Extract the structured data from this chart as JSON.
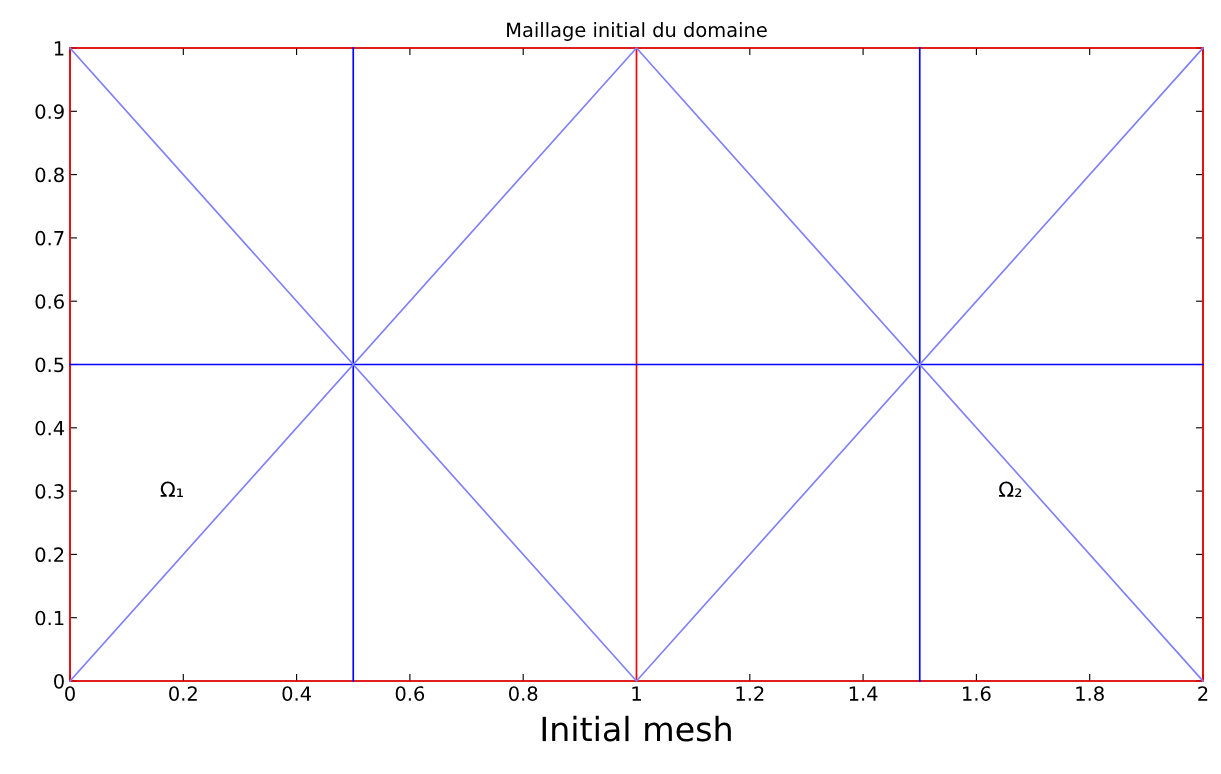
{
  "chart_data": {
    "type": "line",
    "title": "Maillage initial du domaine",
    "xlabel": "Initial mesh",
    "series": [
      {
        "color": "#8080ff",
        "x": [
          0,
          1,
          2
        ],
        "values": [
          1,
          0,
          1
        ]
      },
      {
        "color": "#8080ff",
        "x": [
          0,
          1,
          2
        ],
        "values": [
          0,
          1,
          0
        ]
      }
    ],
    "ref_lines": [
      {
        "axis": "y",
        "value": 0,
        "color": "#ff0000"
      },
      {
        "axis": "y",
        "value": 1,
        "color": "#ff0000"
      },
      {
        "axis": "x",
        "value": 0,
        "color": "#ff0000"
      },
      {
        "axis": "x",
        "value": 1,
        "color": "#ff0000"
      },
      {
        "axis": "x",
        "value": 2,
        "color": "#ff0000"
      },
      {
        "axis": "x",
        "value": 0.5,
        "color": "#0000ff"
      },
      {
        "axis": "x",
        "value": 1.5,
        "color": "#0000ff"
      },
      {
        "axis": "y",
        "value": 0.5,
        "color": "#0000ff"
      }
    ],
    "annotations": [
      "Ω₁",
      "Ω₂"
    ],
    "xlim": [
      0,
      2
    ],
    "ylim": [
      0,
      1
    ],
    "xticks": [
      0,
      0.2,
      0.4,
      0.6,
      0.8,
      1,
      1.2,
      1.4,
      1.6,
      1.8,
      2
    ],
    "yticks": [
      0,
      0.1,
      0.2,
      0.3,
      0.4,
      0.5,
      0.6,
      0.7,
      0.8,
      0.9,
      1
    ],
    "grid": false,
    "marker": "none",
    "line_style": "solid"
  }
}
